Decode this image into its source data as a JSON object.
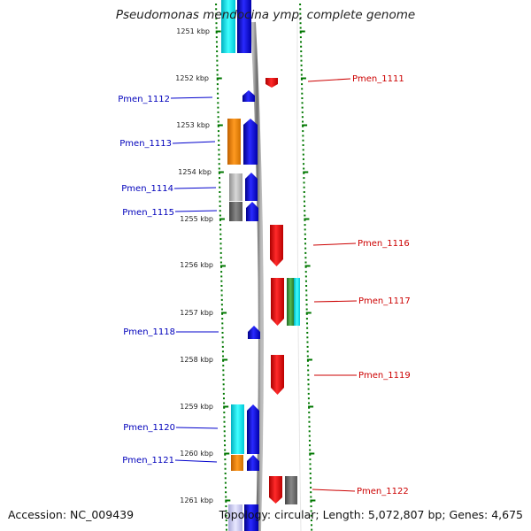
{
  "title": "Pseudomonas mendocina ymp, complete genome",
  "footer": {
    "accession": "Accession: NC_009439",
    "summary": "Topology: circular; Length: 5,072,807 bp; Genes: 4,675"
  },
  "colors": {
    "forward_strand": "#0000ee",
    "reverse_strand": "#ee0000",
    "tick": "#007700",
    "backbone": "#999999",
    "cog_cyan": "#00e0e0",
    "cog_orange": "#f08000",
    "cog_gray": "#b0b0b0",
    "cog_dark_gray": "#666666",
    "cog_green": "#339933",
    "cog_lavender": "#c8c8f0"
  },
  "kbp_labels": [
    "1251 kbp",
    "1252 kbp",
    "1253 kbp",
    "1254 kbp",
    "1255 kbp",
    "1256 kbp",
    "1257 kbp",
    "1258 kbp",
    "1259 kbp",
    "1260 kbp",
    "1261 kbp"
  ],
  "genes_left": [
    "Pmen_1112",
    "Pmen_1113",
    "Pmen_1114",
    "Pmen_1115",
    "Pmen_1118",
    "Pmen_1120",
    "Pmen_1121"
  ],
  "genes_right": [
    "Pmen_1111",
    "Pmen_1116",
    "Pmen_1117",
    "Pmen_1119",
    "Pmen_1122"
  ]
}
